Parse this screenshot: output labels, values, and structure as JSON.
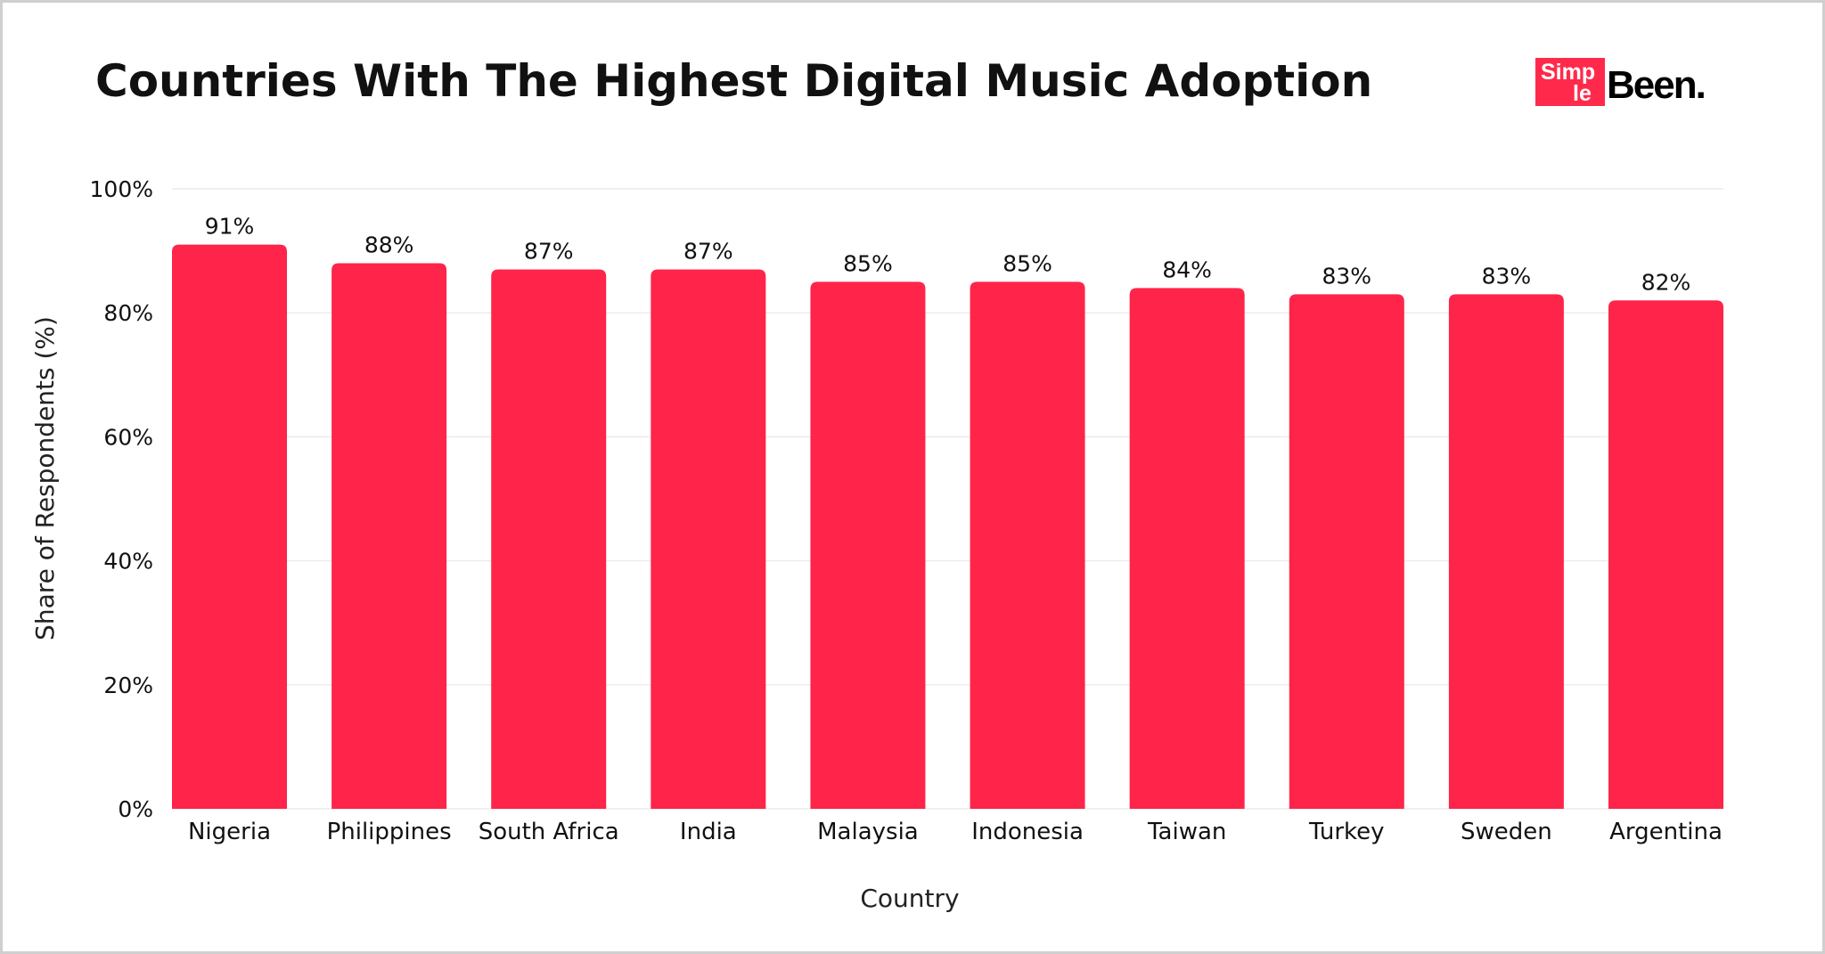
{
  "chart_data": {
    "type": "bar",
    "title": "Countries With The Highest Digital Music Adoption",
    "xlabel": "Country",
    "ylabel": "Share of Respondents (%)",
    "ylim": [
      0,
      100
    ],
    "yticks": [
      "0%",
      "20%",
      "40%",
      "60%",
      "80%",
      "100%"
    ],
    "grid": true,
    "categories": [
      "Nigeria",
      "Philippines",
      "South Africa",
      "India",
      "Malaysia",
      "Indonesia",
      "Taiwan",
      "Turkey",
      "Sweden",
      "Argentina"
    ],
    "values": [
      91,
      88,
      87,
      87,
      85,
      85,
      84,
      83,
      83,
      82
    ],
    "data_labels": [
      "91%",
      "88%",
      "87%",
      "87%",
      "85%",
      "85%",
      "84%",
      "83%",
      "83%",
      "82%"
    ],
    "bar_color": "#ff2449"
  },
  "logo": {
    "text_top": "Simp",
    "text_bottom": "le",
    "text_word": "Been."
  }
}
